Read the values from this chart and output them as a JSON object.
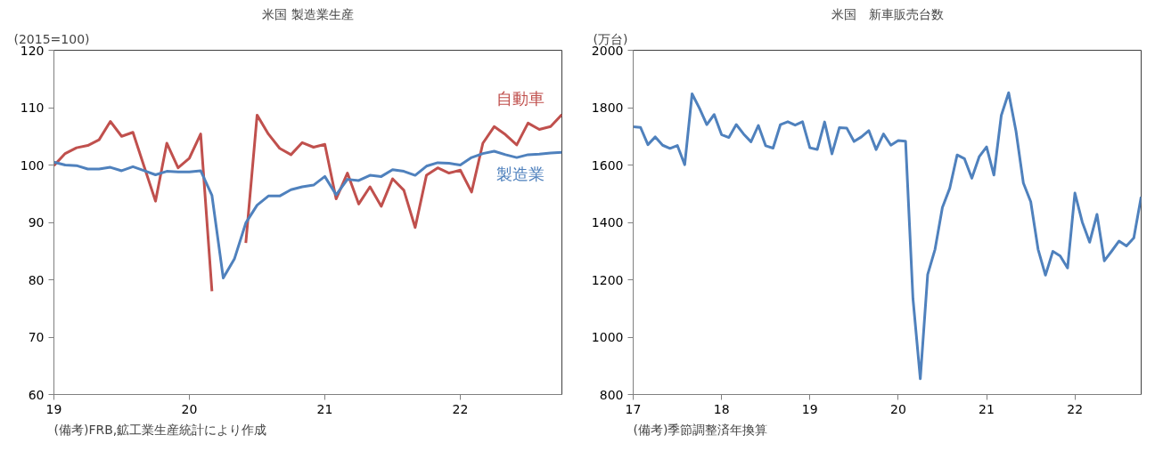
{
  "chart_data": [
    {
      "type": "line",
      "title": "米国 製造業生産",
      "ylabel": "(2015=100)",
      "x": [
        "2019-01",
        "2019-02",
        "2019-03",
        "2019-04",
        "2019-05",
        "2019-06",
        "2019-07",
        "2019-08",
        "2019-09",
        "2019-10",
        "2019-11",
        "2019-12",
        "2020-01",
        "2020-02",
        "2020-03",
        "2020-04",
        "2020-05",
        "2020-06",
        "2020-07",
        "2020-08",
        "2020-09",
        "2020-10",
        "2020-11",
        "2020-12",
        "2021-01",
        "2021-02",
        "2021-03",
        "2021-04",
        "2021-05",
        "2021-06",
        "2021-07",
        "2021-08",
        "2021-09",
        "2021-10",
        "2021-11",
        "2021-12",
        "2022-01",
        "2022-02",
        "2022-03",
        "2022-04",
        "2022-05",
        "2022-06",
        "2022-07",
        "2022-08",
        "2022-09",
        "2022-10"
      ],
      "series": [
        {
          "name": "自動車",
          "color": "#c0504d",
          "values": [
            99.9,
            102,
            103,
            103.4,
            104.4,
            107.6,
            105,
            105.7,
            99.7,
            93.7,
            103.8,
            99.5,
            101.2,
            105.4,
            78,
            null,
            null,
            86.4,
            108.7,
            105.4,
            102.9,
            101.8,
            103.9,
            103.1,
            103.6,
            94.1,
            98.6,
            93.2,
            96.2,
            92.8,
            97.6,
            95.6,
            89.1,
            98.2,
            99.5,
            98.6,
            99.1,
            95.3,
            103.8,
            106.7,
            105.3,
            103.5,
            107.3,
            106.2,
            106.7,
            108.8
          ]
        },
        {
          "name": "製造業",
          "color": "#4f81bd",
          "values": [
            100.5,
            100,
            99.9,
            99.3,
            99.3,
            99.6,
            99,
            99.7,
            99,
            98.3,
            98.9,
            98.8,
            98.8,
            99,
            94.7,
            80.3,
            83.7,
            89.9,
            93,
            94.6,
            94.6,
            95.7,
            96.2,
            96.5,
            98,
            94.8,
            97.5,
            97.3,
            98.2,
            98,
            99.2,
            98.9,
            98.2,
            99.8,
            100.4,
            100.3,
            100,
            101.3,
            102,
            102.4,
            101.8,
            101.3,
            101.8,
            101.9,
            102.1,
            102.2
          ]
        }
      ],
      "xlim": [
        "2019-01",
        "2022-10"
      ],
      "xticks": [
        {
          "value": "2019-01",
          "label": "19"
        },
        {
          "value": "2020-01",
          "label": "20"
        },
        {
          "value": "2021-01",
          "label": "21"
        },
        {
          "value": "2022-01",
          "label": "22"
        }
      ],
      "ylim": [
        60,
        120
      ],
      "yticks": [
        60,
        70,
        80,
        90,
        100,
        110,
        120
      ],
      "annotations": [
        "(備考)FRB,鉱工業生産統計により作成"
      ]
    },
    {
      "type": "line",
      "title": "米国　新車販売台数",
      "ylabel": "(万台)",
      "x": [
        "2017-01",
        "2017-02",
        "2017-03",
        "2017-04",
        "2017-05",
        "2017-06",
        "2017-07",
        "2017-08",
        "2017-09",
        "2017-10",
        "2017-11",
        "2017-12",
        "2018-01",
        "2018-02",
        "2018-03",
        "2018-04",
        "2018-05",
        "2018-06",
        "2018-07",
        "2018-08",
        "2018-09",
        "2018-10",
        "2018-11",
        "2018-12",
        "2019-01",
        "2019-02",
        "2019-03",
        "2019-04",
        "2019-05",
        "2019-06",
        "2019-07",
        "2019-08",
        "2019-09",
        "2019-10",
        "2019-11",
        "2019-12",
        "2020-01",
        "2020-02",
        "2020-03",
        "2020-04",
        "2020-05",
        "2020-06",
        "2020-07",
        "2020-08",
        "2020-09",
        "2020-10",
        "2020-11",
        "2020-12",
        "2021-01",
        "2021-02",
        "2021-03",
        "2021-04",
        "2021-05",
        "2021-06",
        "2021-07",
        "2021-08",
        "2021-09",
        "2021-10",
        "2021-11",
        "2021-12",
        "2022-01",
        "2022-02",
        "2022-03",
        "2022-04",
        "2022-05",
        "2022-06",
        "2022-07",
        "2022-08",
        "2022-09",
        "2022-10"
      ],
      "series": [
        {
          "color": "#4f81bd",
          "values": [
            1733,
            1731,
            1671,
            1698,
            1669,
            1658,
            1668,
            1601,
            1848,
            1798,
            1741,
            1776,
            1706,
            1696,
            1741,
            1708,
            1681,
            1738,
            1667,
            1659,
            1741,
            1751,
            1739,
            1751,
            1660,
            1654,
            1750,
            1639,
            1730,
            1729,
            1682,
            1698,
            1720,
            1654,
            1708,
            1669,
            1685,
            1683,
            1135,
            855,
            1218,
            1306,
            1452,
            1519,
            1635,
            1622,
            1554,
            1629,
            1663,
            1565,
            1773,
            1852,
            1718,
            1537,
            1472,
            1306,
            1216,
            1299,
            1283,
            1241,
            1502,
            1401,
            1331,
            1428,
            1266,
            1300,
            1335,
            1318,
            1346,
            1489
          ]
        }
      ],
      "xlim": [
        "2017-01",
        "2022-10"
      ],
      "xticks": [
        {
          "value": "2017-01",
          "label": "17"
        },
        {
          "value": "2018-01",
          "label": "18"
        },
        {
          "value": "2019-01",
          "label": "19"
        },
        {
          "value": "2020-01",
          "label": "20"
        },
        {
          "value": "2021-01",
          "label": "21"
        },
        {
          "value": "2022-01",
          "label": "22"
        }
      ],
      "ylim": [
        800,
        2000
      ],
      "yticks": [
        800,
        1000,
        1200,
        1400,
        1600,
        1800,
        2000
      ],
      "annotations": [
        "(備考)季節調整済年換算"
      ]
    }
  ]
}
